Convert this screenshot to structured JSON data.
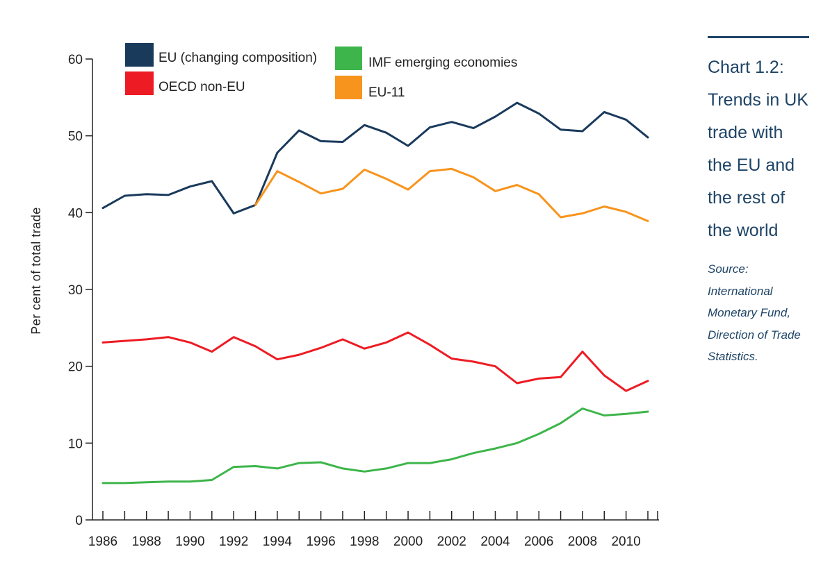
{
  "chart_data": {
    "type": "line",
    "title": "",
    "xlabel": "",
    "ylabel": "Per cent of total trade",
    "ylim": [
      0,
      60
    ],
    "yticks": [
      0,
      10,
      20,
      30,
      40,
      50,
      60
    ],
    "xlim": [
      1986,
      2011
    ],
    "xtick_labels": [
      "1986",
      "1988",
      "1990",
      "1992",
      "1994",
      "1996",
      "1998",
      "2000",
      "2002",
      "2004",
      "2006",
      "2008",
      "2010"
    ],
    "legend": [
      {
        "label": "EU (changing composition)",
        "color": "#1a3a5c"
      },
      {
        "label": "IMF emerging economies",
        "color": "#3db54a"
      },
      {
        "label": "OECD non-EU",
        "color": "#ed1c24"
      },
      {
        "label": "EU-11",
        "color": "#f7941d"
      }
    ],
    "series": [
      {
        "name": "EU (changing composition)",
        "color": "#1a3a5c",
        "x": [
          1986,
          1987,
          1988,
          1989,
          1990,
          1991,
          1992,
          1993,
          1994,
          1995,
          1996,
          1997,
          1998,
          1999,
          2000,
          2001,
          2002,
          2003,
          2004,
          2005,
          2006,
          2007,
          2008,
          2009,
          2010,
          2011
        ],
        "values": [
          40.6,
          42.2,
          42.4,
          42.3,
          43.4,
          44.1,
          39.9,
          41.0,
          47.8,
          50.7,
          49.3,
          49.2,
          51.4,
          50.4,
          48.7,
          51.1,
          51.8,
          51.0,
          52.5,
          54.3,
          52.9,
          50.8,
          50.6,
          53.1,
          52.1,
          49.8
        ]
      },
      {
        "name": "EU-11",
        "color": "#f7941d",
        "x": [
          1993,
          1994,
          1995,
          1996,
          1997,
          1998,
          1999,
          2000,
          2001,
          2002,
          2003,
          2004,
          2005,
          2006,
          2007,
          2008,
          2009,
          2010,
          2011
        ],
        "values": [
          41.0,
          45.4,
          44.0,
          42.5,
          43.1,
          45.6,
          44.4,
          43.0,
          45.4,
          45.7,
          44.6,
          42.8,
          43.6,
          42.4,
          39.4,
          39.9,
          40.8,
          40.1,
          38.9
        ]
      },
      {
        "name": "OECD non-EU",
        "color": "#ed1c24",
        "x": [
          1986,
          1987,
          1988,
          1989,
          1990,
          1991,
          1992,
          1993,
          1994,
          1995,
          1996,
          1997,
          1998,
          1999,
          2000,
          2001,
          2002,
          2003,
          2004,
          2005,
          2006,
          2007,
          2008,
          2009,
          2010,
          2011
        ],
        "values": [
          23.1,
          23.3,
          23.5,
          23.8,
          23.1,
          21.9,
          23.8,
          22.6,
          20.9,
          21.5,
          22.4,
          23.5,
          22.3,
          23.1,
          24.4,
          22.8,
          21.0,
          20.6,
          20.0,
          17.8,
          18.4,
          18.6,
          21.9,
          18.8,
          16.8,
          18.1
        ]
      },
      {
        "name": "IMF emerging economies",
        "color": "#3db54a",
        "x": [
          1986,
          1987,
          1988,
          1989,
          1990,
          1991,
          1992,
          1993,
          1994,
          1995,
          1996,
          1997,
          1998,
          1999,
          2000,
          2001,
          2002,
          2003,
          2004,
          2005,
          2006,
          2007,
          2008,
          2009,
          2010,
          2011
        ],
        "values": [
          4.8,
          4.8,
          4.9,
          5.0,
          5.0,
          5.2,
          6.9,
          7.0,
          6.7,
          7.4,
          7.5,
          6.7,
          6.3,
          6.7,
          7.4,
          7.4,
          7.9,
          8.7,
          9.3,
          10.0,
          11.2,
          12.6,
          14.5,
          13.6,
          13.8,
          14.1
        ]
      }
    ]
  },
  "sidebar": {
    "title_lines": [
      "Chart 1.2:",
      "Trends in UK",
      "trade with",
      "the EU and",
      "the rest of",
      "the world"
    ],
    "source_lines": [
      "Source:",
      "International",
      "Monetary Fund,",
      "Direction of Trade",
      "Statistics."
    ]
  }
}
